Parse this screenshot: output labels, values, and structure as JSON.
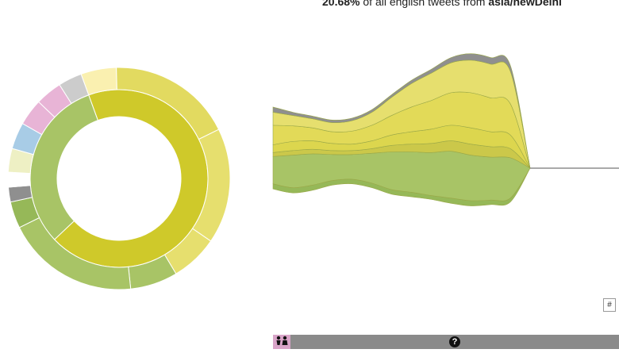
{
  "headline": {
    "percent": "20.68%",
    "text": " of all english tweets from ",
    "location": "asia/newDelhi"
  },
  "colors": {
    "yellow_dark": "#cfc92a",
    "yellow": "#dcd64e",
    "yellow_light": "#e6df6e",
    "pale_yellow": "#faf0b0",
    "green": "#a8c466",
    "green_dark": "#96b858",
    "gray": "#8f8f8f",
    "light_gray": "#cccccc",
    "pink": "#e8b4d6",
    "blue": "#a8cce6",
    "cream": "#eef0c4"
  },
  "controls": {
    "hash_label": "#",
    "help_label": "?"
  },
  "icons": {
    "people": "people-icon",
    "help": "question-circle-icon"
  },
  "chart_data": [
    {
      "type": "pie",
      "style": "sunburst",
      "rings": [
        {
          "name": "inner",
          "slices": [
            {
              "value": 68.5,
              "color": "#cfc92a"
            },
            {
              "value": 31.5,
              "color": "#a8c466"
            }
          ]
        },
        {
          "name": "outer",
          "slices": [
            {
              "value": 6.0,
              "color": "#faf0b0"
            },
            {
              "value": 21.0,
              "color": "#e2da60"
            },
            {
              "value": 19.5,
              "color": "#e6df6e"
            },
            {
              "value": 8.0,
              "color": "#e6df6e"
            },
            {
              "value": 8.0,
              "color": "#a8c466"
            },
            {
              "value": 22.5,
              "color": "#a8c466"
            },
            {
              "value": 4.5,
              "color": "#96b858"
            },
            {
              "value": 2.5,
              "color": "#8f8f8f"
            },
            {
              "value": 2.5,
              "color": "#ffffff"
            },
            {
              "value": 4.0,
              "color": "#eef0c4"
            },
            {
              "value": 4.5,
              "color": "#a8cce6"
            },
            {
              "value": 4.5,
              "color": "#e8b4d6"
            },
            {
              "value": 4.5,
              "color": "#e8b4d6"
            },
            {
              "value": 4.0,
              "color": "#cccccc"
            }
          ]
        }
      ]
    },
    {
      "type": "area",
      "style": "streamgraph",
      "x": [
        0,
        1,
        2,
        3,
        4,
        5,
        6,
        7,
        8,
        9,
        10,
        11,
        12,
        13
      ],
      "series": [
        {
          "color": "#96b858",
          "values": [
            8,
            8,
            8,
            7,
            7,
            7,
            7,
            7,
            6,
            8,
            8,
            7,
            6,
            0
          ]
        },
        {
          "color": "#a8c466",
          "values": [
            42,
            50,
            48,
            40,
            38,
            46,
            58,
            62,
            66,
            72,
            70,
            66,
            62,
            0
          ]
        },
        {
          "color": "#cbc84a",
          "values": [
            6,
            7,
            7,
            6,
            6,
            7,
            10,
            12,
            14,
            16,
            17,
            16,
            14,
            0
          ]
        },
        {
          "color": "#dcd64e",
          "values": [
            12,
            14,
            13,
            11,
            10,
            12,
            16,
            19,
            22,
            24,
            25,
            23,
            21,
            0
          ]
        },
        {
          "color": "#e2da58",
          "values": [
            30,
            24,
            20,
            18,
            20,
            24,
            30,
            38,
            44,
            50,
            54,
            52,
            48,
            0
          ]
        },
        {
          "color": "#e6df6e",
          "values": [
            20,
            16,
            14,
            14,
            16,
            20,
            28,
            36,
            42,
            46,
            50,
            52,
            50,
            0
          ]
        },
        {
          "color": "#8f8f8f",
          "values": [
            8,
            5,
            4,
            4,
            4,
            4,
            4,
            5,
            6,
            8,
            10,
            10,
            9,
            0
          ]
        }
      ],
      "baseline": [
        -32,
        -38,
        -34,
        -26,
        -24,
        -30,
        -40,
        -44,
        -48,
        -54,
        -58,
        -56,
        -52,
        0
      ]
    }
  ]
}
